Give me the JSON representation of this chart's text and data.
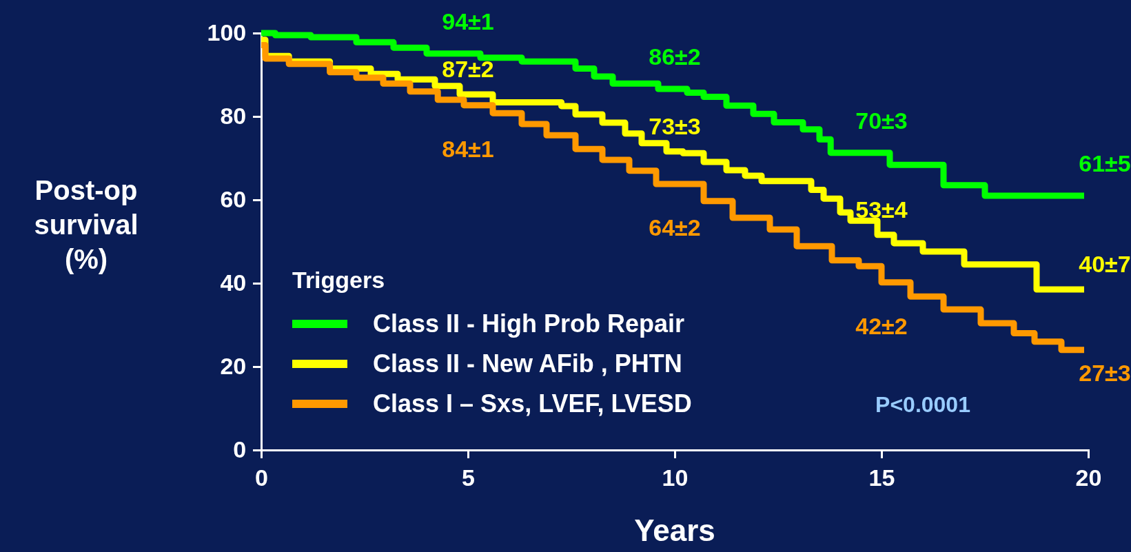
{
  "chart_data": {
    "type": "step",
    "xlabel": "Years",
    "ylabel": "Post-op survival (%)",
    "legend_title": "Triggers",
    "legend": "bottom left",
    "xlim": [
      0,
      20
    ],
    "ylim": [
      0,
      100
    ],
    "xticks": [
      0,
      5,
      10,
      15,
      20
    ],
    "yticks": [
      0,
      20,
      40,
      60,
      80,
      100
    ],
    "grid": false,
    "marker": "none",
    "line_style": "solid",
    "series": [
      {
        "name": "Class II - High Prob Repair",
        "color": "#00ff00",
        "x": [
          0,
          0.34,
          1.2,
          2.3,
          3.2,
          4.0,
          5.3,
          6.3,
          7.6,
          8.05,
          8.5,
          9.6,
          10.3,
          10.7,
          11.25,
          11.9,
          12.4,
          13.1,
          13.5,
          13.77,
          15.2,
          16.5,
          17.5,
          19.9
        ],
        "values": [
          100,
          99.5,
          99,
          97.8,
          96.5,
          95.1,
          94.1,
          93.2,
          91.5,
          89.6,
          87.9,
          86.6,
          85.7,
          84.7,
          82.6,
          80.6,
          78.6,
          76.9,
          74.5,
          71.3,
          68.4,
          63.5,
          61,
          61
        ]
      },
      {
        "name": "Class II - New AFib , PHTN",
        "color": "#ffff00",
        "x": [
          0,
          0.1,
          0.67,
          1.66,
          2.65,
          3.3,
          4.2,
          4.8,
          5.6,
          7.26,
          7.6,
          8.25,
          8.8,
          9.2,
          9.8,
          10.2,
          10.7,
          11.25,
          11.7,
          12.1,
          13.3,
          13.6,
          14.0,
          14.25,
          14.9,
          15.3,
          16.0,
          17.0,
          18.75,
          19.9
        ],
        "values": [
          98.4,
          94.5,
          93.2,
          91.5,
          90.2,
          88.9,
          87.3,
          85.3,
          83.4,
          82.5,
          80.5,
          78.5,
          75.9,
          73.6,
          71.6,
          71.2,
          69.1,
          67.1,
          65.8,
          64.5,
          62.4,
          60.3,
          57,
          55,
          51.6,
          49.6,
          47.6,
          44.5,
          38.5,
          38.5
        ]
      },
      {
        "name": "Class I – Sxs, LVEF, LVESD",
        "color": "#ff9900",
        "x": [
          0,
          0.1,
          0.67,
          1.66,
          2.3,
          2.95,
          3.6,
          4.27,
          4.9,
          5.6,
          6.3,
          6.9,
          7.6,
          8.25,
          8.9,
          9.55,
          10.7,
          11.4,
          12.3,
          12.95,
          13.8,
          14.45,
          15.0,
          15.7,
          16.5,
          17.4,
          18.2,
          18.7,
          19.35,
          19.9
        ],
        "values": [
          97.1,
          93.9,
          92.6,
          90.6,
          89.3,
          87.9,
          86,
          84,
          82.7,
          80.8,
          78.2,
          75.5,
          72.2,
          69.6,
          67,
          63.8,
          59.7,
          55.7,
          52.9,
          48.9,
          45.5,
          44.1,
          40.2,
          36.8,
          33.7,
          30.4,
          28,
          26,
          24,
          24
        ]
      }
    ],
    "annotations": [
      {
        "text": "94±1",
        "x": 5,
        "y": 95.1
      },
      {
        "text": "87±2",
        "x": 5,
        "y": 85.3
      },
      {
        "text": "84±1",
        "x": 5,
        "y": 82.7
      },
      {
        "text": "86±2",
        "x": 10,
        "y": 86.6
      },
      {
        "text": "73±3",
        "x": 10,
        "y": 71.6
      },
      {
        "text": "64±2",
        "x": 10,
        "y": 63.8
      },
      {
        "text": "70±3",
        "x": 15,
        "y": 71.3
      },
      {
        "text": "53±4",
        "x": 15,
        "y": 51.6
      },
      {
        "text": "42±2",
        "x": 15,
        "y": 40.2
      },
      {
        "text": "61±5",
        "x": 19.9,
        "y": 61
      },
      {
        "text": "40±7",
        "x": 19.9,
        "y": 38.5
      },
      {
        "text": "27±3",
        "x": 19.9,
        "y": 24
      },
      "P<0.0001"
    ]
  }
}
